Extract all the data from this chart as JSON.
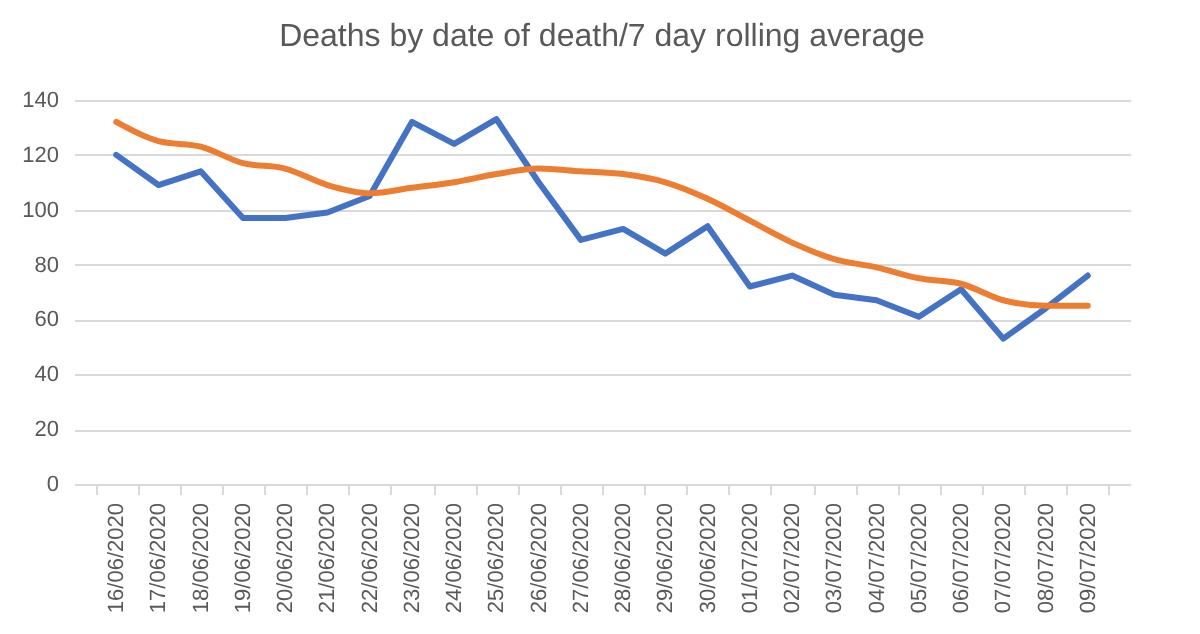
{
  "chart_data": {
    "type": "line",
    "title": "Deaths by date of death/7 day rolling average",
    "categories": [
      "16/06/2020",
      "17/06/2020",
      "18/06/2020",
      "19/06/2020",
      "20/06/2020",
      "21/06/2020",
      "22/06/2020",
      "23/06/2020",
      "24/06/2020",
      "25/06/2020",
      "26/06/2020",
      "27/06/2020",
      "28/06/2020",
      "29/06/2020",
      "30/06/2020",
      "01/07/2020",
      "02/07/2020",
      "03/07/2020",
      "04/07/2020",
      "05/07/2020",
      "06/07/2020",
      "07/07/2020",
      "08/07/2020",
      "09/07/2020"
    ],
    "series": [
      {
        "color": "#4472c4",
        "values": [
          120,
          109,
          114,
          97,
          97,
          99,
          105,
          132,
          124,
          133,
          110,
          89,
          93,
          84,
          94,
          72,
          76,
          69,
          67,
          61,
          71,
          53,
          64,
          76
        ]
      },
      {
        "color": "#ed7d31",
        "values": [
          132,
          125,
          123,
          117,
          115,
          109,
          106,
          108,
          110,
          113,
          115,
          114,
          113,
          110,
          104,
          96,
          88,
          82,
          79,
          75,
          73,
          67,
          65,
          65
        ]
      }
    ],
    "ylim": [
      0,
      140
    ],
    "yticks": [
      0,
      20,
      40,
      60,
      80,
      100,
      120,
      140
    ],
    "grid": "y",
    "legend": false
  }
}
